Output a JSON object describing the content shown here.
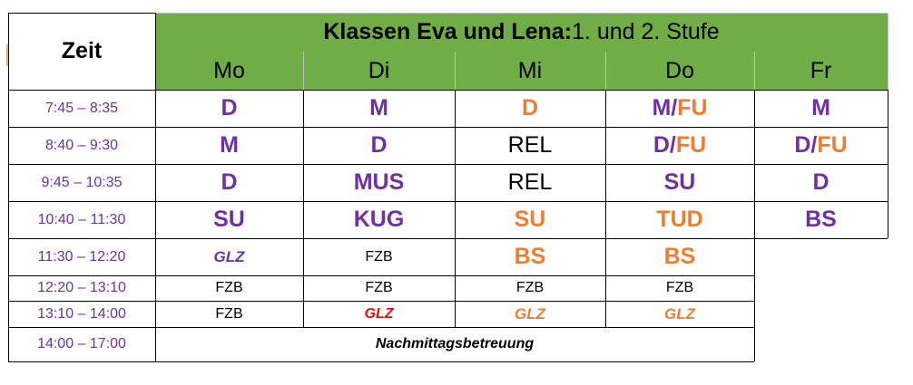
{
  "header": {
    "zeit_label": "Zeit",
    "title_bold": "Klassen Eva und Lena:",
    "title_rest": " 1. und 2. Stufe",
    "days": [
      "Mo",
      "Di",
      "Mi",
      "Do",
      "Fr"
    ]
  },
  "colors": {
    "header_green": "#70ad47",
    "purple": "#7030a0",
    "orange": "#ed7d31",
    "red": "#e01010",
    "black": "#000000"
  },
  "rows": [
    {
      "time": "7:45 – 8:35",
      "cells": [
        {
          "parts": [
            {
              "text": "D",
              "color": "purple"
            }
          ],
          "style": "big"
        },
        {
          "parts": [
            {
              "text": "M",
              "color": "purple"
            }
          ],
          "style": "big"
        },
        {
          "parts": [
            {
              "text": "D",
              "color": "orange"
            }
          ],
          "style": "big"
        },
        {
          "parts": [
            {
              "text": "M/",
              "color": "purple"
            },
            {
              "text": "FU",
              "color": "orange"
            }
          ],
          "style": "big"
        },
        {
          "parts": [
            {
              "text": "M",
              "color": "purple"
            }
          ],
          "style": "big"
        }
      ]
    },
    {
      "time": "8:40 – 9:30",
      "cells": [
        {
          "parts": [
            {
              "text": "M",
              "color": "purple"
            }
          ],
          "style": "big"
        },
        {
          "parts": [
            {
              "text": "D",
              "color": "purple"
            }
          ],
          "style": "big"
        },
        {
          "parts": [
            {
              "text": "REL",
              "color": "black"
            }
          ],
          "style": "reg"
        },
        {
          "parts": [
            {
              "text": "D/ ",
              "color": "purple"
            },
            {
              "text": "FU",
              "color": "orange"
            }
          ],
          "style": "big"
        },
        {
          "parts": [
            {
              "text": "D/ ",
              "color": "purple"
            },
            {
              "text": "FU",
              "color": "orange"
            }
          ],
          "style": "big"
        }
      ]
    },
    {
      "time": "9:45 – 10:35",
      "cells": [
        {
          "parts": [
            {
              "text": "D",
              "color": "purple"
            }
          ],
          "style": "big"
        },
        {
          "parts": [
            {
              "text": "MUS",
              "color": "purple"
            }
          ],
          "style": "big"
        },
        {
          "parts": [
            {
              "text": "REL",
              "color": "black"
            }
          ],
          "style": "reg"
        },
        {
          "parts": [
            {
              "text": "SU",
              "color": "purple"
            }
          ],
          "style": "big"
        },
        {
          "parts": [
            {
              "text": "D",
              "color": "purple"
            }
          ],
          "style": "big"
        }
      ]
    },
    {
      "time": "10:40 – 11:30",
      "cells": [
        {
          "parts": [
            {
              "text": "SU",
              "color": "purple"
            }
          ],
          "style": "big"
        },
        {
          "parts": [
            {
              "text": "KUG",
              "color": "purple"
            }
          ],
          "style": "big"
        },
        {
          "parts": [
            {
              "text": "SU",
              "color": "orange"
            }
          ],
          "style": "big"
        },
        {
          "parts": [
            {
              "text": "TUD",
              "color": "orange"
            }
          ],
          "style": "big"
        },
        {
          "parts": [
            {
              "text": "BS",
              "color": "purple"
            }
          ],
          "style": "big"
        }
      ]
    },
    {
      "time": "11:30 – 12:20",
      "cells": [
        {
          "parts": [
            {
              "text": "GLZ",
              "color": "purple"
            }
          ],
          "style": "ital-big"
        },
        {
          "parts": [
            {
              "text": "FZB",
              "color": "black"
            }
          ],
          "style": "small"
        },
        {
          "parts": [
            {
              "text": "BS",
              "color": "orange"
            }
          ],
          "style": "big"
        },
        {
          "parts": [
            {
              "text": "BS",
              "color": "orange"
            }
          ],
          "style": "big"
        }
      ]
    },
    {
      "time": "12:20 – 13:10",
      "cells": [
        {
          "parts": [
            {
              "text": "FZB",
              "color": "black"
            }
          ],
          "style": "small"
        },
        {
          "parts": [
            {
              "text": "FZB",
              "color": "black"
            }
          ],
          "style": "small"
        },
        {
          "parts": [
            {
              "text": "FZB",
              "color": "black"
            }
          ],
          "style": "small"
        },
        {
          "parts": [
            {
              "text": "FZB",
              "color": "black"
            }
          ],
          "style": "small"
        }
      ]
    },
    {
      "time": "13:10 – 14:00",
      "cells": [
        {
          "parts": [
            {
              "text": "FZB",
              "color": "black"
            }
          ],
          "style": "small"
        },
        {
          "parts": [
            {
              "text": "GLZ",
              "color": "red"
            }
          ],
          "style": "ital"
        },
        {
          "parts": [
            {
              "text": "GLZ",
              "color": "orange"
            }
          ],
          "style": "ital-big"
        },
        {
          "parts": [
            {
              "text": "GLZ",
              "color": "orange"
            }
          ],
          "style": "ital-big"
        }
      ]
    },
    {
      "time": "14:00 – 17:00",
      "merged": "Nachmittagsbetreuung"
    }
  ]
}
